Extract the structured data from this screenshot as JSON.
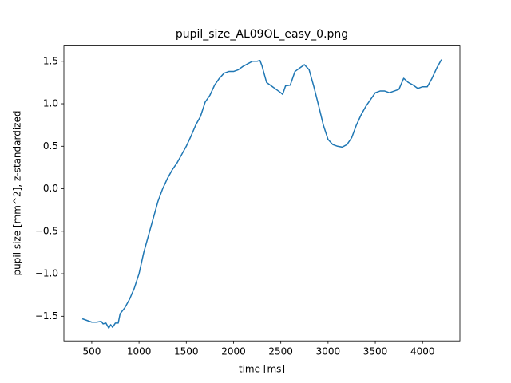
{
  "chart_data": {
    "type": "line",
    "title": "pupil_size_AL09OL_easy_0.png",
    "x_label": "time [ms]",
    "y_label": "pupil size [mm^2], z-standardized",
    "x": [
      400,
      450,
      500,
      550,
      600,
      620,
      650,
      680,
      700,
      720,
      750,
      780,
      800,
      850,
      900,
      950,
      1000,
      1050,
      1100,
      1150,
      1200,
      1250,
      1300,
      1350,
      1400,
      1450,
      1500,
      1550,
      1600,
      1650,
      1700,
      1750,
      1800,
      1850,
      1900,
      1950,
      2000,
      2050,
      2100,
      2150,
      2200,
      2250,
      2280,
      2300,
      2350,
      2400,
      2450,
      2500,
      2520,
      2550,
      2600,
      2650,
      2700,
      2750,
      2800,
      2850,
      2900,
      2950,
      3000,
      3050,
      3100,
      3150,
      3200,
      3250,
      3300,
      3350,
      3400,
      3450,
      3500,
      3550,
      3600,
      3650,
      3700,
      3750,
      3800,
      3850,
      3900,
      3950,
      4000,
      4050,
      4100,
      4150,
      4200
    ],
    "series": [
      {
        "name": "pupil size",
        "color": "#1f77b4",
        "values": [
          -1.53,
          -1.55,
          -1.57,
          -1.57,
          -1.56,
          -1.59,
          -1.58,
          -1.64,
          -1.6,
          -1.63,
          -1.58,
          -1.58,
          -1.47,
          -1.4,
          -1.3,
          -1.17,
          -1.0,
          -0.75,
          -0.55,
          -0.35,
          -0.15,
          0.0,
          0.12,
          0.22,
          0.3,
          0.4,
          0.5,
          0.62,
          0.75,
          0.85,
          1.02,
          1.1,
          1.22,
          1.3,
          1.36,
          1.38,
          1.38,
          1.4,
          1.44,
          1.47,
          1.5,
          1.5,
          1.51,
          1.45,
          1.25,
          1.21,
          1.17,
          1.13,
          1.11,
          1.21,
          1.22,
          1.38,
          1.42,
          1.46,
          1.4,
          1.2,
          0.98,
          0.75,
          0.58,
          0.52,
          0.5,
          0.49,
          0.52,
          0.6,
          0.75,
          0.87,
          0.97,
          1.05,
          1.13,
          1.15,
          1.15,
          1.13,
          1.15,
          1.17,
          1.3,
          1.25,
          1.22,
          1.18,
          1.2,
          1.2,
          1.3,
          1.42,
          1.52
        ]
      }
    ],
    "xlim": [
      205,
      4395
    ],
    "ylim": [
      -1.79,
      1.68
    ],
    "xticks": [
      500,
      1000,
      1500,
      2000,
      2500,
      3000,
      3500,
      4000
    ],
    "yticks": [
      {
        "value": -1.5,
        "label": "−1.5"
      },
      {
        "value": -1.0,
        "label": "−1.0"
      },
      {
        "value": -0.5,
        "label": "−0.5"
      },
      {
        "value": 0,
        "label": "0.0"
      },
      0.5,
      {
        "value": 1.0,
        "label": "1.0"
      },
      1.5
    ]
  }
}
